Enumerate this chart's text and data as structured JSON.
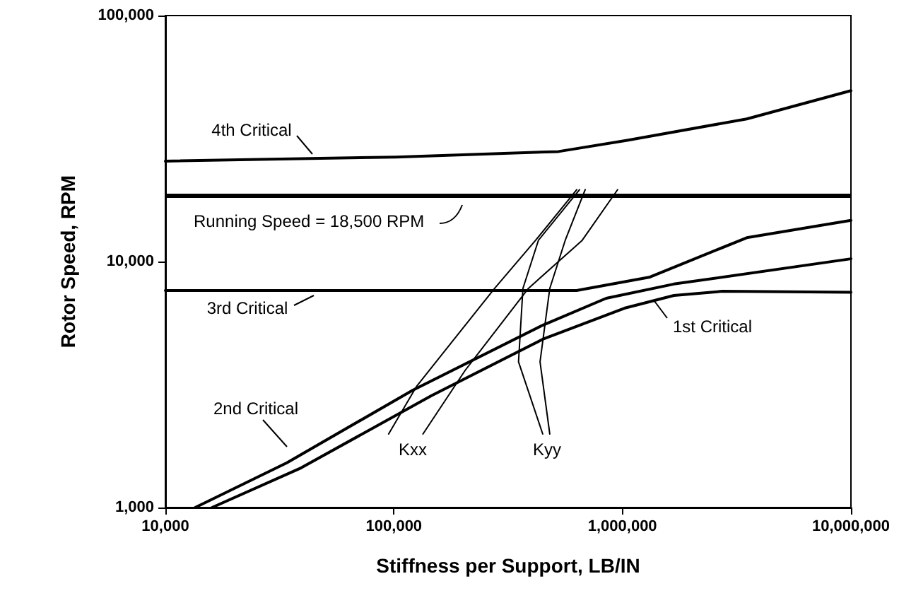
{
  "chart_data": {
    "type": "line",
    "xlabel": "Stiffness per Support, LB/IN",
    "ylabel": "Rotor Speed, RPM",
    "log": "xy",
    "grid": false,
    "marker": "none",
    "xlim": [
      10000,
      10000000
    ],
    "xticks": [
      {
        "value": 10000,
        "label": "10,000"
      },
      {
        "value": 100000,
        "label": "100,000"
      },
      {
        "value": 1000000,
        "label": "1,000,000"
      },
      {
        "value": 10000000,
        "label": "10,000,000"
      }
    ],
    "ylim": [
      1000,
      100000
    ],
    "yticks": [
      {
        "value": 1000,
        "label": "1,000"
      },
      {
        "value": 10000,
        "label": "10,000"
      },
      {
        "value": 100000,
        "label": "100,000"
      }
    ],
    "series": [
      {
        "color": "#000000",
        "x": [
          10000,
          102000,
          525000,
          1050000,
          3500000,
          10000000
        ],
        "values": [
          25600,
          26600,
          28000,
          31100,
          38000,
          49500
        ]
      },
      {
        "color": "#000000",
        "x": [
          10000,
          300000,
          630000,
          1320000,
          1680000,
          3500000,
          10000000
        ],
        "values": [
          7620,
          7620,
          7620,
          8650,
          9480,
          12500,
          14700
        ]
      },
      {
        "color": "#000000",
        "x": [
          13500,
          34000,
          121000,
          448000,
          849000,
          1680000,
          10000000
        ],
        "values": [
          1000,
          1520,
          3000,
          5510,
          7090,
          8100,
          10260
        ]
      },
      {
        "color": "#000000",
        "x": [
          16000,
          39300,
          146000,
          448000,
          1020000,
          1680000,
          2740000,
          10000000
        ],
        "values": [
          1000,
          1450,
          2850,
          4830,
          6460,
          7280,
          7570,
          7500
        ]
      },
      {
        "color": "#000000",
        "x": [
          94800,
          126000,
          276000,
          417000,
          631000
        ],
        "values": [
          1990,
          3120,
          7780,
          12200,
          19600
        ]
      },
      {
        "color": "#000000",
        "x": [
          134000,
          205000,
          388000,
          667000,
          953000
        ],
        "values": [
          1990,
          3610,
          7780,
          12200,
          19600
        ]
      },
      {
        "color": "#000000",
        "x": [
          448000,
          351000,
          367000,
          429000,
          649000
        ],
        "values": [
          1990,
          3910,
          7780,
          12200,
          19600
        ]
      },
      {
        "color": "#000000",
        "x": [
          481000,
          436000,
          481000,
          562000,
          687000
        ],
        "values": [
          1990,
          3910,
          7780,
          12200,
          19600
        ]
      }
    ],
    "ref_lines": [
      {
        "axis": "y",
        "value": 18500,
        "label": "Running Speed = 18,500 RPM",
        "color": "#000000"
      }
    ],
    "annotations": [
      "4th Critical",
      "3rd Critical",
      "2nd Critical",
      "Kxx",
      "Kyy",
      "1st Critical"
    ]
  }
}
